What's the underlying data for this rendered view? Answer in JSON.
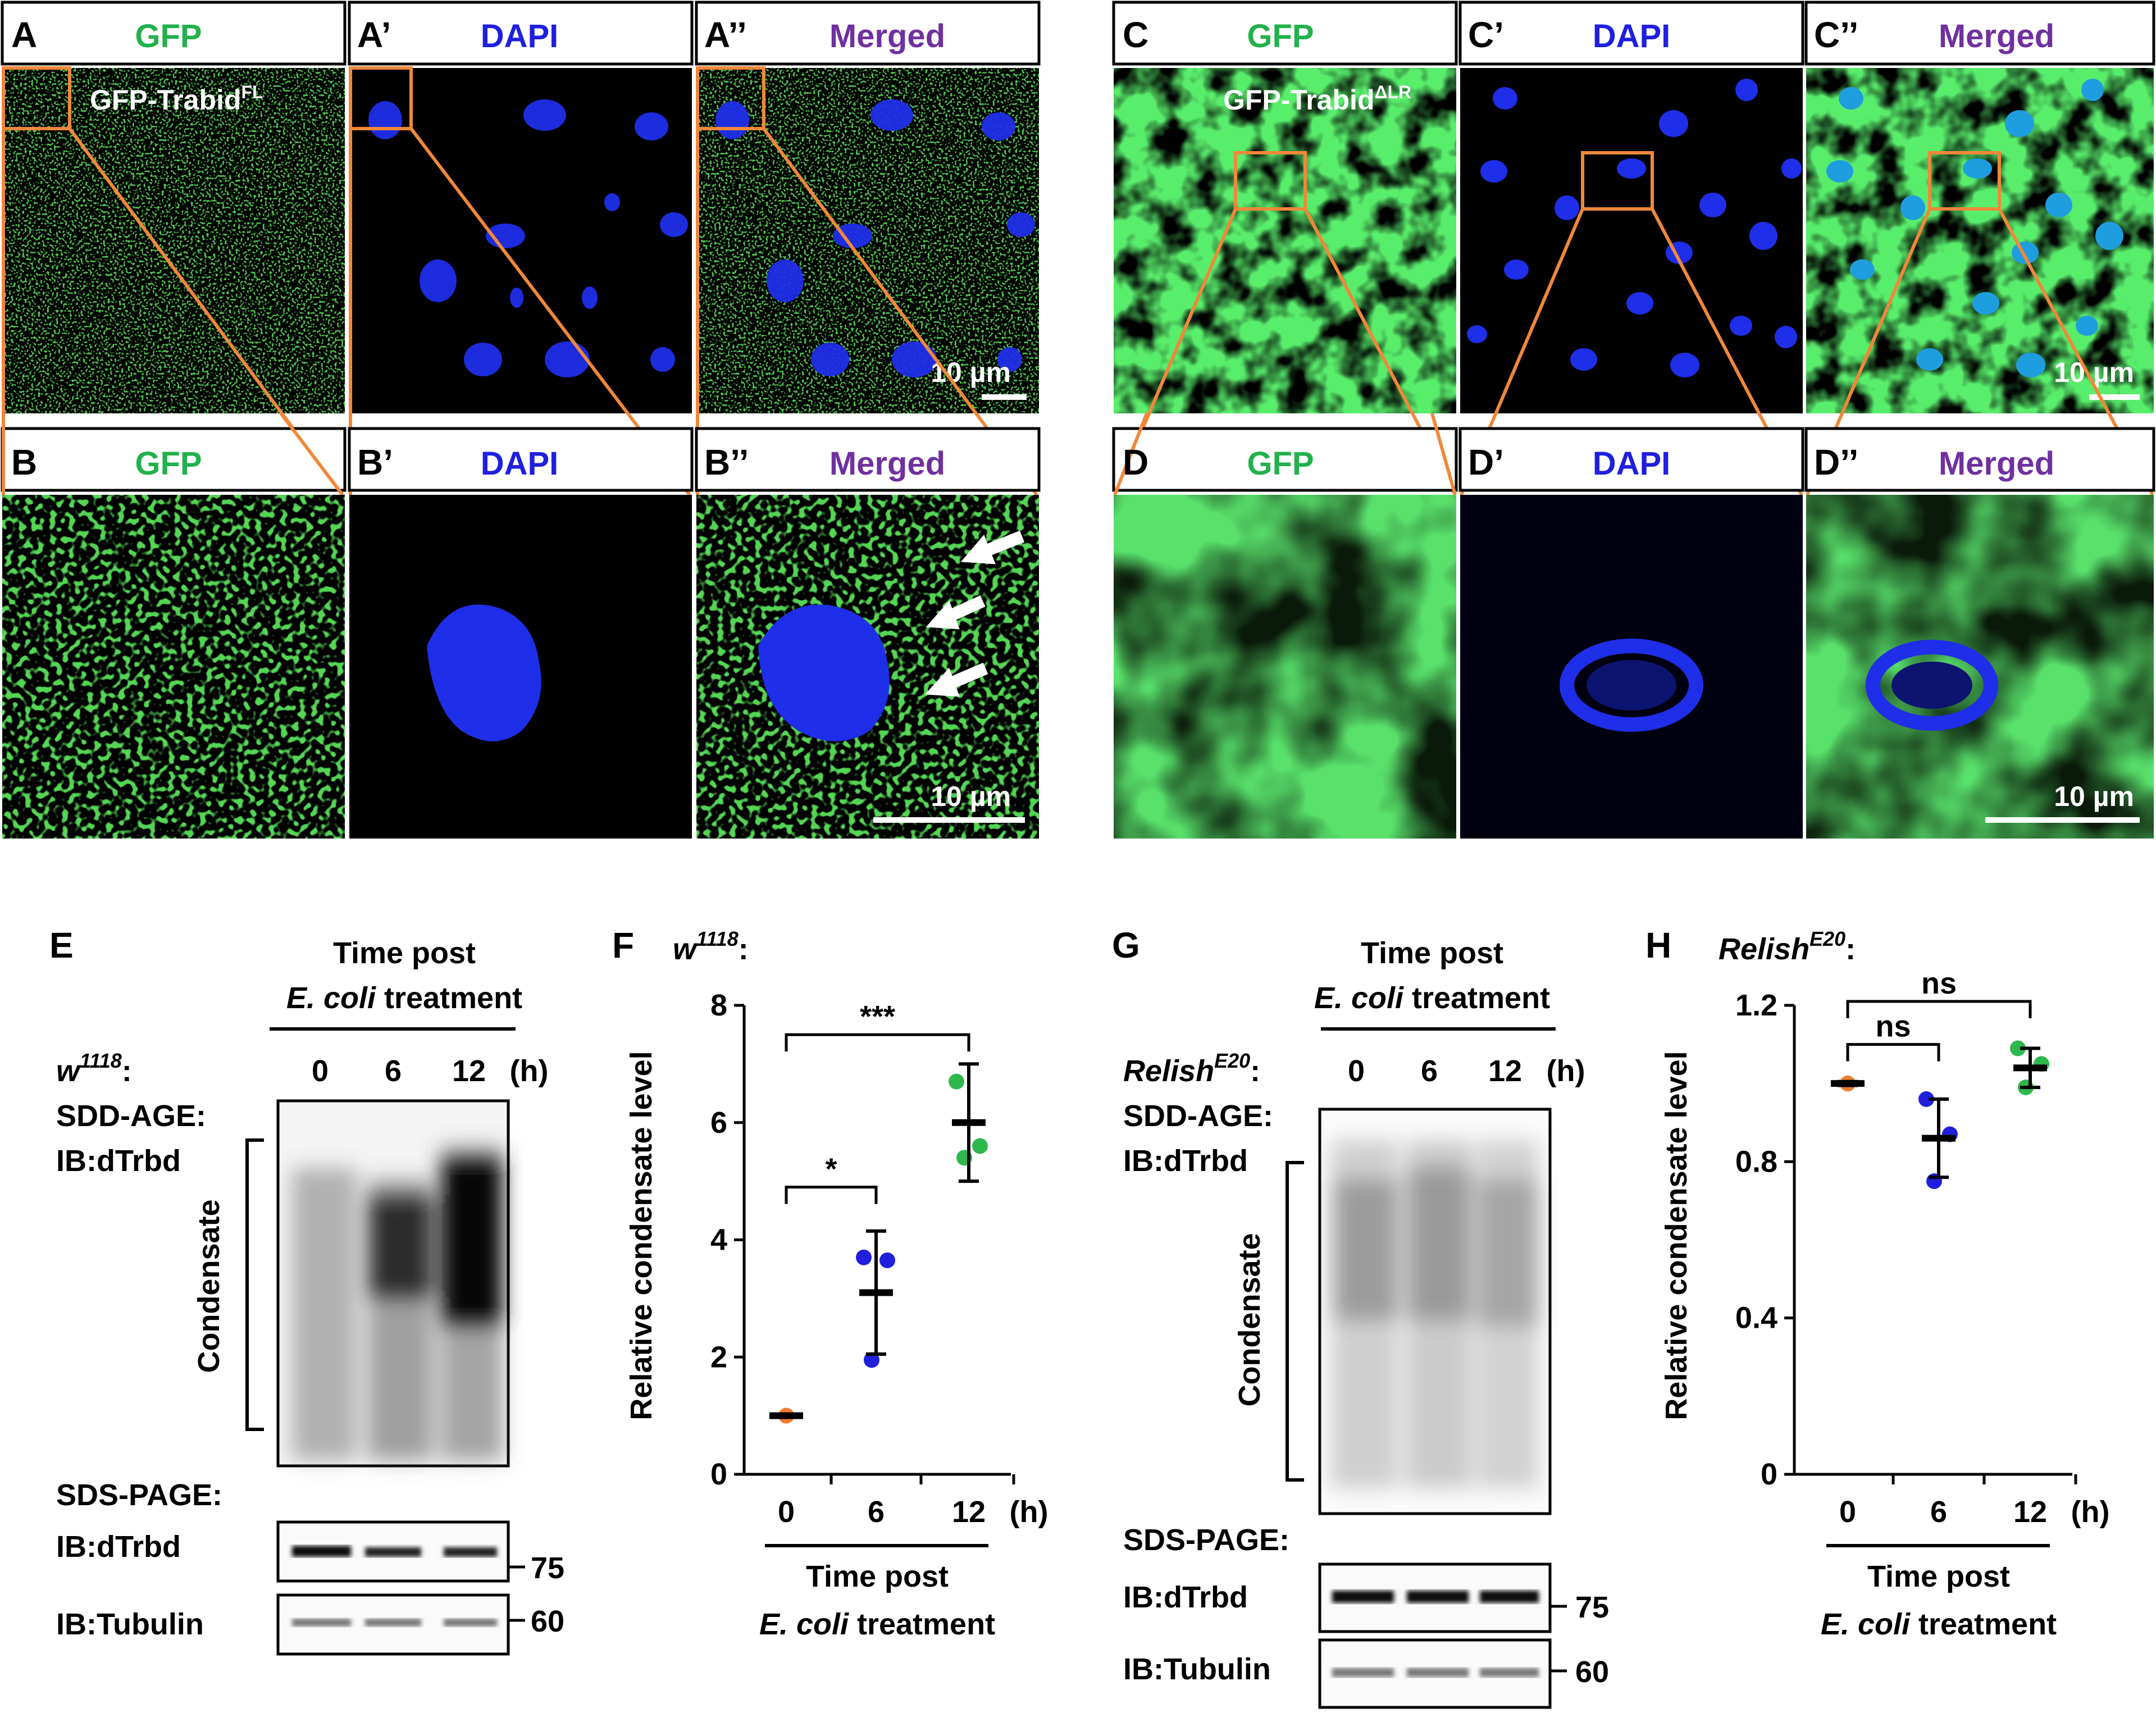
{
  "colors": {
    "gfp": "#22b14c",
    "dapi": "#1f1fe0",
    "merged": "#7030a0",
    "zoom": "#f0883a",
    "w0": "#ed7d31",
    "w6": "#1f1fdc",
    "w12": "#2db84d"
  },
  "panelA": {
    "label_A": "A",
    "label_A1": "A’",
    "label_A2": "A’’",
    "label_B": "B",
    "label_B1": "B’",
    "label_B2": "B’’",
    "gfp": "GFP",
    "dapi": "DAPI",
    "merged": "Merged",
    "construct_main": "GFP-Trabid",
    "construct_sup": "FL",
    "scale_top": "10 µm",
    "scale_bottom": "10 µm"
  },
  "panelC": {
    "label_C": "C",
    "label_C1": "C’",
    "label_C2": "C’’",
    "label_D": "D",
    "label_D1": "D’",
    "label_D2": "D’’",
    "gfp": "GFP",
    "dapi": "DAPI",
    "merged": "Merged",
    "construct_main": "GFP-Trabid",
    "construct_sup": "ΔLR",
    "scale_top": "10 µm",
    "scale_bottom": "10 µm"
  },
  "panelE": {
    "letter": "E",
    "title_line1": "Time post",
    "title_italic": "E. coli",
    "title_rest": " treatment",
    "genotype_main": "w",
    "genotype_sup": "1118",
    "genotype_suffix": ":",
    "times": [
      "0",
      "6",
      "12"
    ],
    "unit": "(h)",
    "sdd_age": "SDD-AGE:",
    "ib_top": "IB:dTrbd",
    "condensate": "Condensate",
    "sds_page": "SDS-PAGE:",
    "ib_mid": "IB:dTrbd",
    "ib_bottom": "IB:Tubulin",
    "mw_75": "75",
    "mw_60": "60"
  },
  "panelG": {
    "letter": "G",
    "title_line1": "Time post",
    "title_italic": "E. coli",
    "title_rest": " treatment",
    "genotype_main": "Relish",
    "genotype_sup": "E20",
    "genotype_suffix": ":",
    "times": [
      "0",
      "6",
      "12"
    ],
    "unit": "(h)",
    "sdd_age": "SDD-AGE:",
    "ib_top": "IB:dTrbd",
    "condensate": "Condensate",
    "sds_page": "SDS-PAGE:",
    "ib_mid": "IB:dTrbd",
    "ib_bottom": "IB:Tubulin",
    "mw_75": "75",
    "mw_60": "60"
  },
  "chart_data": [
    {
      "panel": "F",
      "type": "scatter",
      "genotype_main": "w",
      "genotype_sup": "1118",
      "genotype_suffix": ":",
      "ylabel": "Relative condensate level",
      "xlabel_line1": "Time post",
      "xlabel_italic": "E. coli",
      "xlabel_rest": " treatment",
      "x_unit": "(h)",
      "categories": [
        "0",
        "6",
        "12"
      ],
      "ylim": [
        0,
        8
      ],
      "yticks": [
        "0",
        "2",
        "4",
        "6",
        "8"
      ],
      "means": [
        1.0,
        3.1,
        6.0
      ],
      "sd": [
        0.02,
        1.05,
        1.0
      ],
      "points": [
        [
          1.0,
          1.0,
          1.0
        ],
        [
          3.7,
          3.65,
          1.95
        ],
        [
          6.7,
          5.6,
          5.4
        ]
      ],
      "significance": [
        {
          "from": 0,
          "to": 1,
          "label": "*"
        },
        {
          "from": 0,
          "to": 2,
          "label": "***"
        }
      ]
    },
    {
      "panel": "H",
      "type": "scatter",
      "genotype_main": "Relish",
      "genotype_sup": "E20",
      "genotype_suffix": ":",
      "ylabel": "Relative condensate level",
      "xlabel_line1": "Time post",
      "xlabel_italic": "E. coli",
      "xlabel_rest": " treatment",
      "x_unit": "(h)",
      "categories": [
        "0",
        "6",
        "12"
      ],
      "ylim": [
        0,
        1.2
      ],
      "yticks": [
        "0",
        "0.4",
        "0.8",
        "1.2"
      ],
      "means": [
        1.0,
        0.86,
        1.04
      ],
      "sd": [
        0.005,
        0.1,
        0.05
      ],
      "points": [
        [
          1.0,
          1.0,
          1.0
        ],
        [
          0.96,
          0.87,
          0.75
        ],
        [
          1.09,
          1.05,
          0.99
        ]
      ],
      "significance": [
        {
          "from": 0,
          "to": 1,
          "label": "ns"
        },
        {
          "from": 0,
          "to": 2,
          "label": "ns"
        }
      ]
    }
  ]
}
